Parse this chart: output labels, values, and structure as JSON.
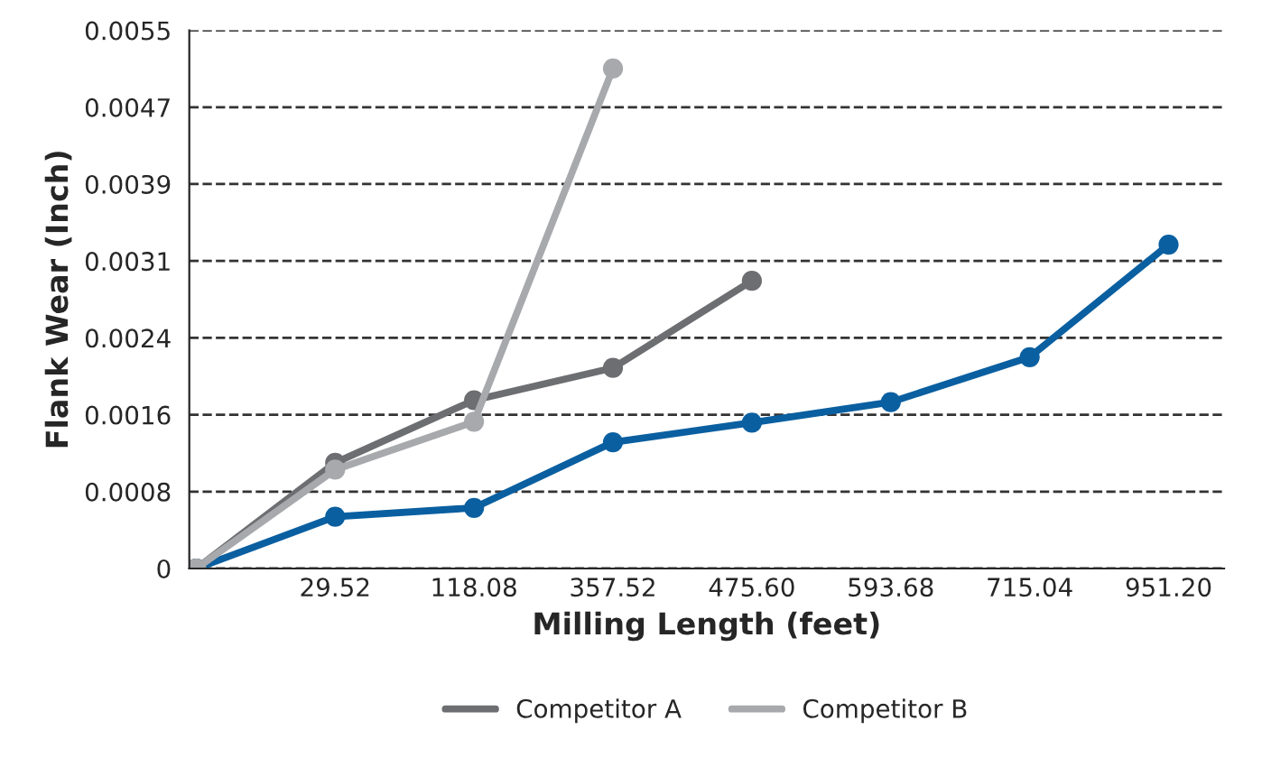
{
  "chart_data": {
    "type": "line",
    "xlabel": "Milling Length (feet)",
    "ylabel": "Flank Wear (Inch)",
    "categories": [
      null,
      "29.52",
      "118.08",
      "357.52",
      "475.60",
      "593.68",
      "715.04",
      "951.20"
    ],
    "series": [
      {
        "color": "#0a5fa0",
        "values": [
          0,
          0.00053,
          0.00062,
          0.00129,
          0.00149,
          0.0017,
          0.00216,
          0.00331
        ]
      },
      {
        "name": "Competitor A",
        "color": "#6d6e71",
        "values": [
          0,
          0.00108,
          0.00172,
          0.00205,
          0.00294,
          null,
          null,
          null
        ]
      },
      {
        "name": "Competitor B",
        "color": "#a7a9ac",
        "values": [
          0,
          0.00101,
          0.0015,
          0.00511,
          null,
          null,
          null,
          null
        ]
      }
    ],
    "ylim": [
      0,
      0.0055
    ],
    "yticks": [
      0,
      {
        "value": 0.000786,
        "label": "0.0008"
      },
      {
        "value": 0.001571,
        "label": "0.0016"
      },
      {
        "value": 0.002357,
        "label": "0.0024"
      },
      {
        "value": 0.003143,
        "label": "0.0031"
      },
      {
        "value": 0.003929,
        "label": "0.0039"
      },
      {
        "value": 0.004714,
        "label": "0.0047"
      },
      0.0055
    ],
    "grid": "y",
    "legend": "bottom",
    "marker": "circle",
    "line_style": "solid"
  }
}
